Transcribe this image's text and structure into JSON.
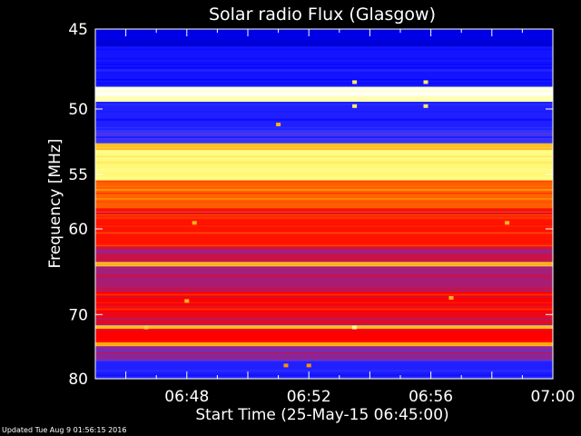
{
  "chart_data": {
    "type": "heatmap",
    "title": "Solar radio Flux (Glasgow)",
    "xlabel": "Start Time (25-May-15 06:45:00)",
    "ylabel": "Frequency [MHz]",
    "x_range": [
      "06:45",
      "07:00"
    ],
    "y_range": [
      45,
      80
    ],
    "y_scale": "reciprocal",
    "x_ticks": [
      "06:48",
      "06:52",
      "06:56",
      "07:00"
    ],
    "y_ticks": [
      45,
      50,
      55,
      60,
      70,
      80
    ],
    "colormap": [
      "#000080",
      "#0000ff",
      "#4040ff",
      "#ff0000",
      "#ffa000",
      "#ffff80",
      "#ffffff"
    ],
    "rows": [
      {
        "from": 45.0,
        "to": 46.0,
        "level": 0.12
      },
      {
        "from": 46.0,
        "to": 48.5,
        "level": 0.22
      },
      {
        "from": 48.5,
        "to": 48.9,
        "level": 0.95
      },
      {
        "from": 48.9,
        "to": 49.1,
        "level": 1.0
      },
      {
        "from": 49.1,
        "to": 49.5,
        "level": 0.9
      },
      {
        "from": 49.5,
        "to": 51.5,
        "level": 0.25
      },
      {
        "from": 51.5,
        "to": 52.5,
        "level": 0.3
      },
      {
        "from": 52.5,
        "to": 53.0,
        "level": 0.72
      },
      {
        "from": 53.0,
        "to": 55.5,
        "level": 0.82
      },
      {
        "from": 55.5,
        "to": 58.0,
        "level": 0.6
      },
      {
        "from": 58.0,
        "to": 62.0,
        "level": 0.52
      },
      {
        "from": 62.0,
        "to": 63.5,
        "level": 0.45
      },
      {
        "from": 63.5,
        "to": 64.0,
        "level": 0.72
      },
      {
        "from": 64.0,
        "to": 67.0,
        "level": 0.42
      },
      {
        "from": 67.0,
        "to": 70.0,
        "level": 0.5
      },
      {
        "from": 70.0,
        "to": 71.5,
        "level": 0.48
      },
      {
        "from": 71.5,
        "to": 72.0,
        "level": 0.72
      },
      {
        "from": 72.0,
        "to": 74.0,
        "level": 0.5
      },
      {
        "from": 74.0,
        "to": 74.6,
        "level": 0.68
      },
      {
        "from": 74.6,
        "to": 77.0,
        "level": 0.4
      },
      {
        "from": 77.0,
        "to": 80.0,
        "level": 0.25
      }
    ],
    "bursts": [
      {
        "time": "06:53:30",
        "freq": 48.2,
        "level": 0.8
      },
      {
        "time": "06:53:30",
        "freq": 49.8,
        "level": 0.8
      },
      {
        "time": "06:55:50",
        "freq": 48.2,
        "level": 0.8
      },
      {
        "time": "06:55:50",
        "freq": 49.8,
        "level": 0.8
      },
      {
        "time": "06:51:00",
        "freq": 51.1,
        "level": 0.7
      },
      {
        "time": "06:48:15",
        "freq": 59.4,
        "level": 0.7
      },
      {
        "time": "06:58:30",
        "freq": 59.4,
        "level": 0.7
      },
      {
        "time": "06:46:40",
        "freq": 71.8,
        "level": 0.75
      },
      {
        "time": "06:53:30",
        "freq": 71.8,
        "level": 0.85
      },
      {
        "time": "06:48:00",
        "freq": 68.2,
        "level": 0.7
      },
      {
        "time": "06:56:40",
        "freq": 67.8,
        "level": 0.7
      },
      {
        "time": "06:51:15",
        "freq": 77.7,
        "level": 0.65
      },
      {
        "time": "06:52:00",
        "freq": 77.7,
        "level": 0.65
      }
    ]
  },
  "footer": {
    "updated": "Updated Tue Aug  9 01:56:15 2016"
  }
}
